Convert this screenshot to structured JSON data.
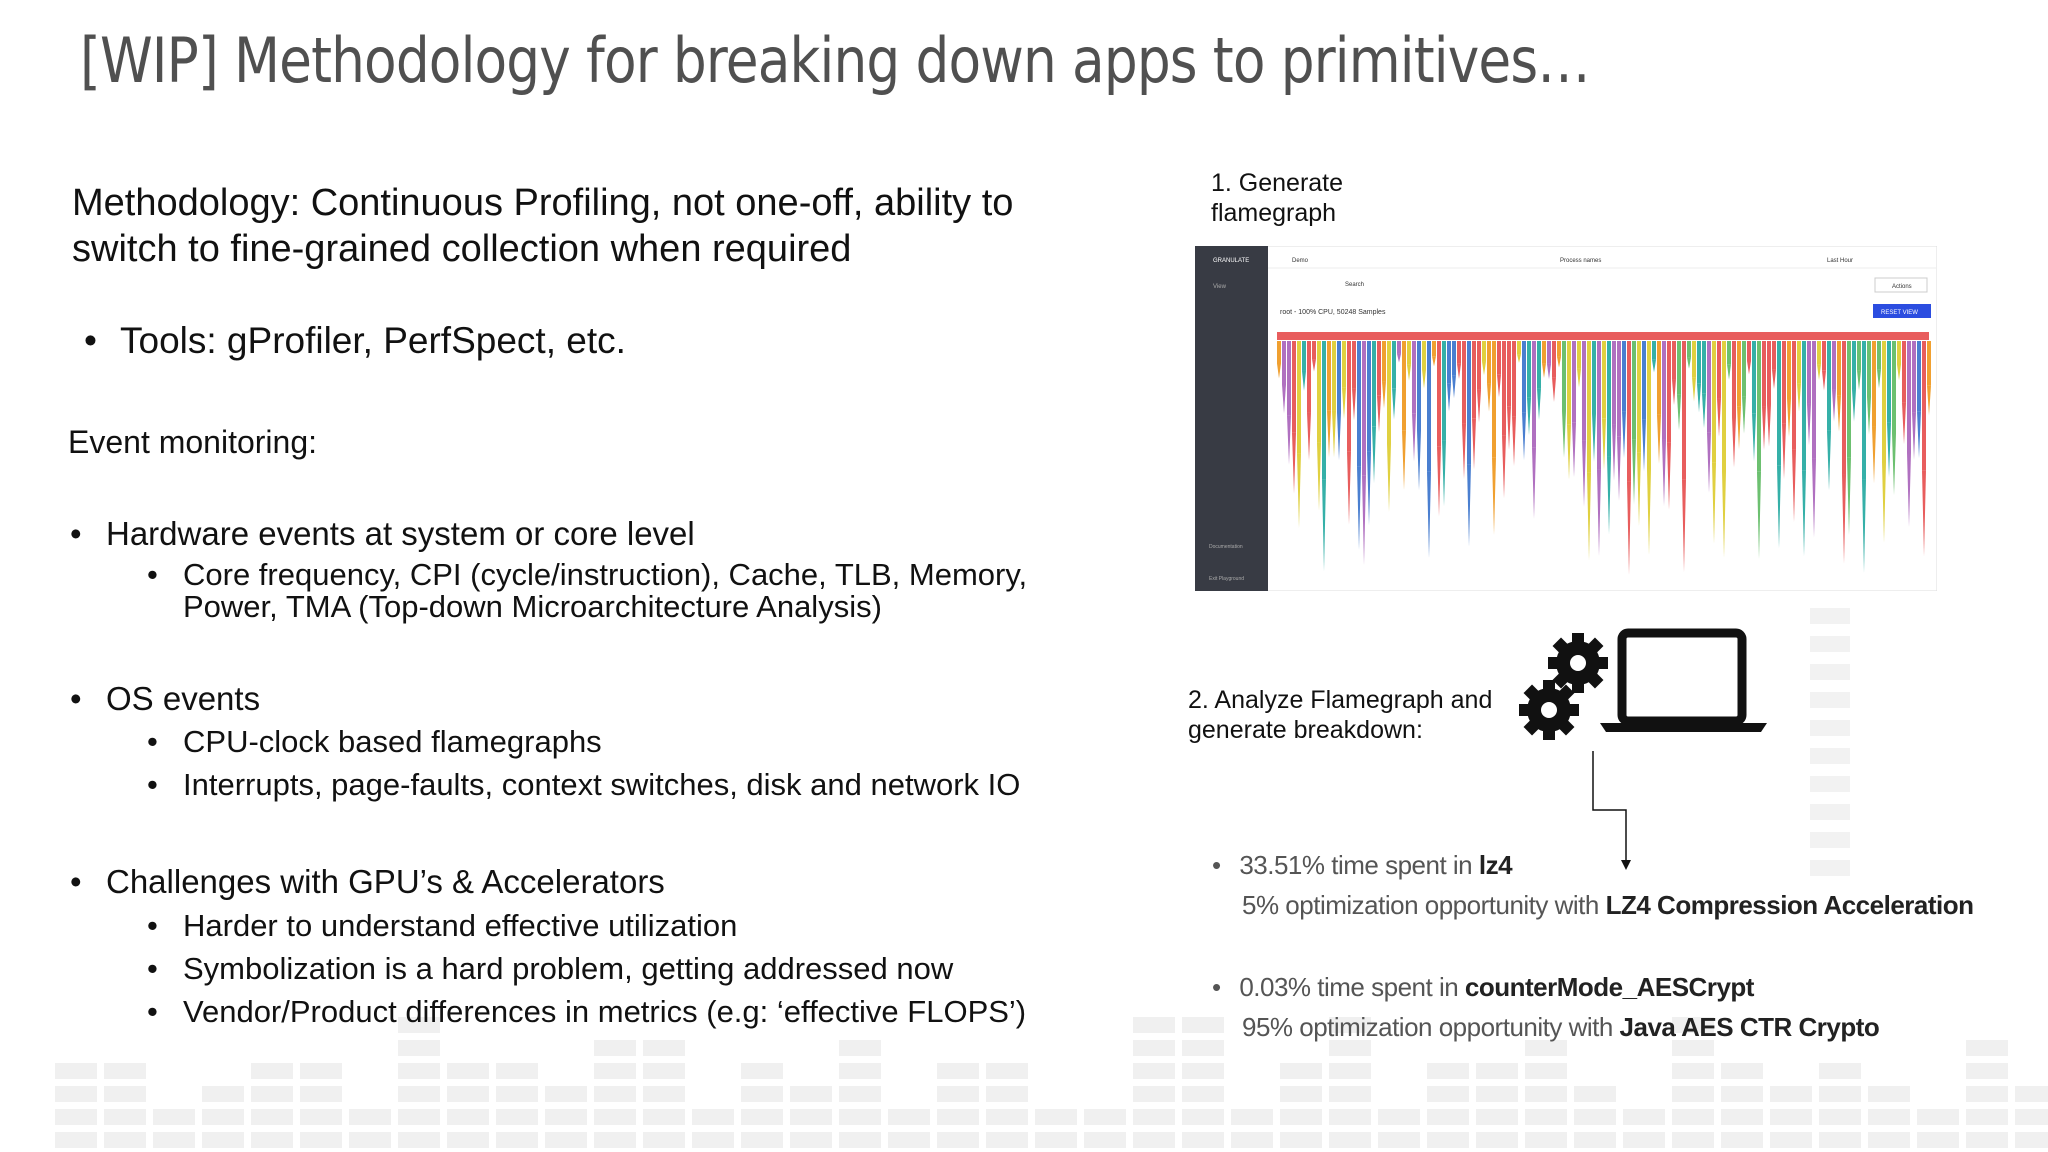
{
  "title": "[WIP] Methodology for breaking down apps to primitives…",
  "left": {
    "intro": "Methodology: Continuous Profiling, not one-off, ability to switch to fine-grained collection when required",
    "tools": "Tools: gProfiler, PerfSpect, etc.",
    "event_heading": "Event monitoring:",
    "groups": [
      {
        "title": "Hardware events at system or core level",
        "items": [
          "Core frequency, CPI (cycle/instruction), Cache, TLB, Memory, Power, TMA (Top-down Microarchitecture Analysis)"
        ]
      },
      {
        "title": "OS events",
        "items": [
          "CPU-clock based flamegraphs",
          "Interrupts, page-faults, context switches, disk and network IO"
        ]
      },
      {
        "title": "Challenges with GPU’s & Accelerators",
        "items": [
          "Harder to understand effective utilization",
          "Symbolization is a hard problem, getting addressed now",
          "Vendor/Product differences in metrics (e.g: ‘effective FLOPS’)"
        ]
      }
    ]
  },
  "right": {
    "step1": "1. Generate flamegraph",
    "step2": "2. Analyze Flamegraph and generate breakdown:",
    "findings": [
      {
        "line1": "33.51% time spent in ",
        "line1_bold": "lz4",
        "line2": "5% optimization opportunity with ",
        "line2_bold": "LZ4 Compression Acceleration"
      },
      {
        "line1": "0.03% time spent in ",
        "line1_bold": "counterMode_AESCrypt",
        "line2": "95% optimization opportunity with ",
        "line2_bold": "Java AES CTR Crypto"
      }
    ]
  },
  "flamegraph_ui": {
    "brand": "GRANULATE",
    "nav": "View",
    "service": "Demo",
    "group_by": "Process names",
    "time": "Last Hour",
    "search": "Search",
    "actions": "Actions",
    "root": "root - 100% CPU, 50248 Samples",
    "reset": "RESET VIEW",
    "docs": "Documentation",
    "exit": "Exit Playground"
  }
}
